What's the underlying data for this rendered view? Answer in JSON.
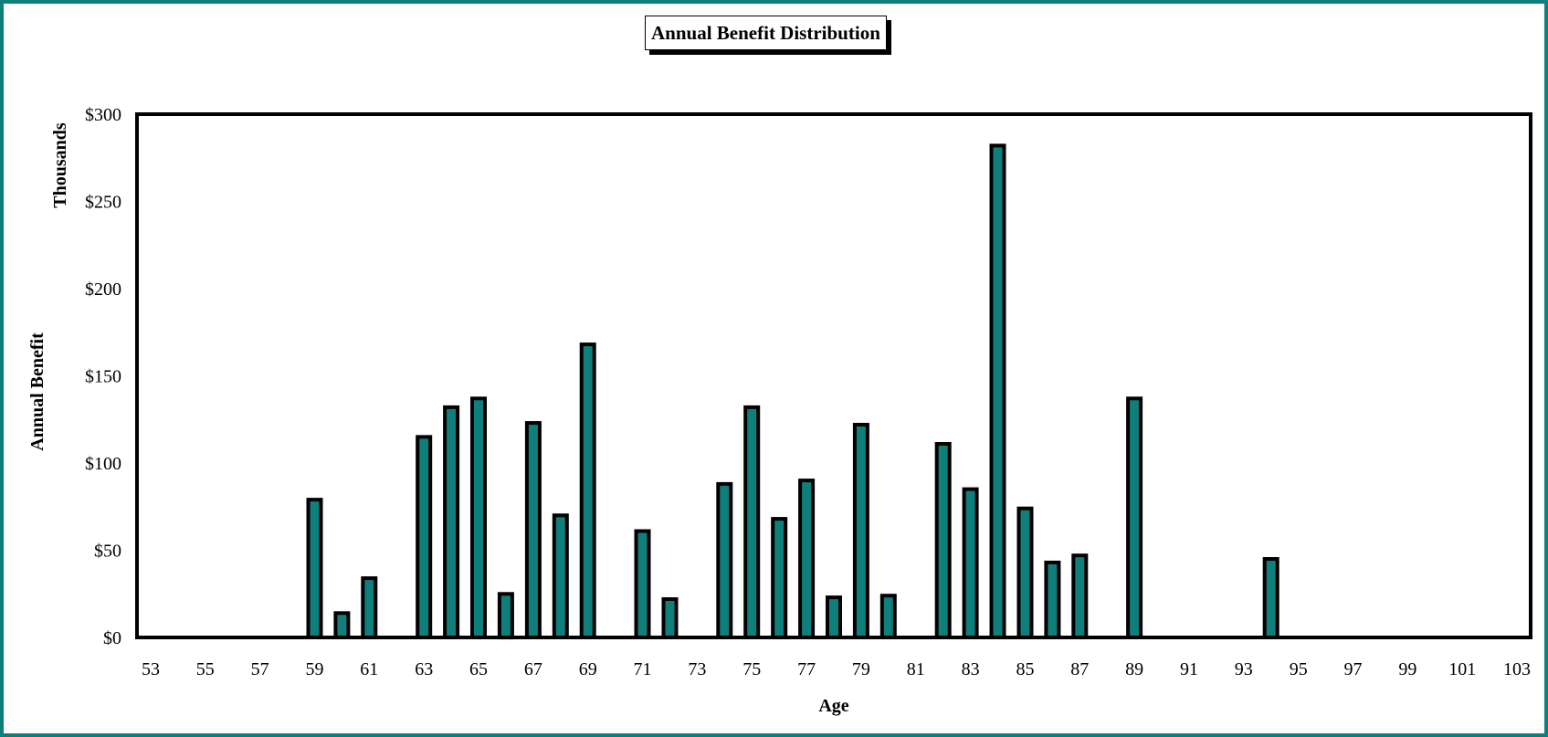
{
  "chart_data": {
    "type": "bar",
    "title": "Annual Benefit Distribution",
    "xlabel": "Age",
    "ylabel": "Annual Benefit",
    "ylabel_units": "Thousands",
    "ylim": [
      0,
      300
    ],
    "yticks": [
      "$0",
      "$50",
      "$100",
      "$150",
      "$200",
      "$250",
      "$300"
    ],
    "x_range": [
      53,
      103
    ],
    "xticks": [
      "53",
      "55",
      "57",
      "59",
      "61",
      "63",
      "65",
      "67",
      "69",
      "71",
      "73",
      "75",
      "77",
      "79",
      "81",
      "83",
      "85",
      "87",
      "89",
      "91",
      "93",
      "95",
      "97",
      "99",
      "101",
      "103"
    ],
    "bar_color": "#0e7f7b",
    "border_color": "#0e7f7b",
    "grid": false,
    "legend": "none",
    "series": [
      {
        "x": [
          59,
          60,
          61,
          63,
          64,
          65,
          66,
          67,
          68,
          69,
          71,
          72,
          74,
          75,
          76,
          77,
          78,
          79,
          80,
          82,
          83,
          84,
          85,
          86,
          87,
          89,
          94
        ],
        "values": [
          79,
          14,
          34,
          115,
          132,
          137,
          25,
          123,
          70,
          168,
          61,
          22,
          88,
          132,
          68,
          90,
          23,
          122,
          24,
          111,
          85,
          282,
          74,
          43,
          47,
          137,
          45
        ]
      }
    ]
  }
}
